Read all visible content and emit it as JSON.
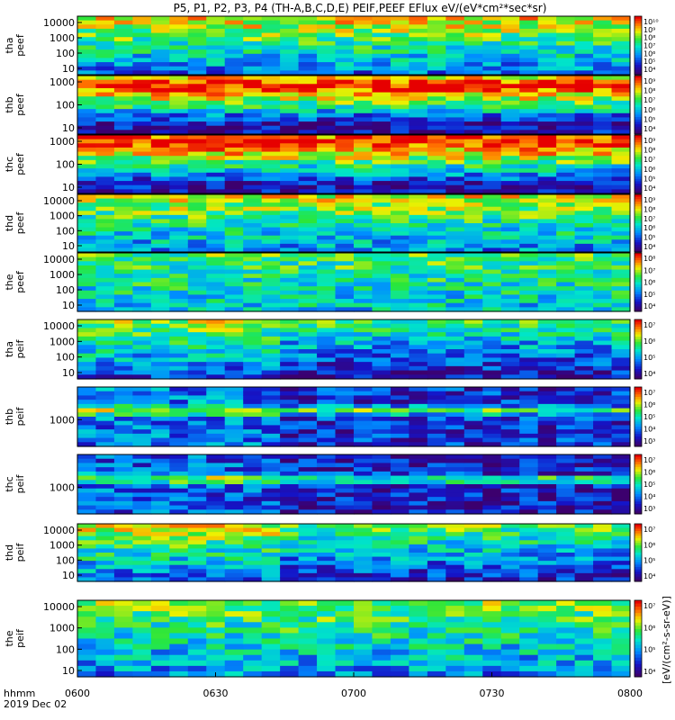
{
  "chart_data": {
    "type": "heatmap",
    "title": "P5, P1, P2, P3, P4 (TH-A,B,C,D,E) PEIF,PEEF EFlux eV/(eV*cm²*sec*sr)",
    "x_axis": {
      "label": "hhmm",
      "date_label": "2019 Dec 02",
      "ticks": [
        "0600",
        "0630",
        "0700",
        "0730",
        "0800"
      ],
      "range": [
        "0600",
        "0800"
      ]
    },
    "colorbar_label": "[eV/(cm²-s-sr-eV)]",
    "panels": [
      {
        "id": "tha-peef",
        "name_lines": [
          "tha",
          "peef"
        ],
        "yticks": [
          "10000",
          "1000",
          "100",
          "10"
        ],
        "cbar_ticks": [
          "10¹⁰",
          "10⁹",
          "10⁸",
          "10⁷",
          "10⁶",
          "10⁵",
          "10⁴"
        ]
      },
      {
        "id": "thb-peef",
        "name_lines": [
          "thb",
          "peef"
        ],
        "yticks": [
          "1000",
          "100",
          "10"
        ],
        "cbar_ticks": [
          "10⁹",
          "10⁸",
          "10⁷",
          "10⁶",
          "10⁵",
          "10⁴"
        ]
      },
      {
        "id": "thc-peef",
        "name_lines": [
          "thc",
          "peef"
        ],
        "yticks": [
          "1000",
          "100",
          "10"
        ],
        "cbar_ticks": [
          "10⁹",
          "10⁸",
          "10⁷",
          "10⁶",
          "10⁵",
          "10⁴"
        ]
      },
      {
        "id": "thd-peef",
        "name_lines": [
          "thd",
          "peef"
        ],
        "yticks": [
          "10000",
          "1000",
          "100",
          "10"
        ],
        "cbar_ticks": [
          "10⁹",
          "10⁸",
          "10⁷",
          "10⁶",
          "10⁵",
          "10⁴"
        ]
      },
      {
        "id": "the-peef",
        "name_lines": [
          "the",
          "peef"
        ],
        "yticks": [
          "10000",
          "1000",
          "100",
          "10"
        ],
        "cbar_ticks": [
          "10⁸",
          "10⁷",
          "10⁶",
          "10⁵",
          "10⁴"
        ]
      },
      {
        "id": "tha-peif",
        "name_lines": [
          "tha",
          "peif"
        ],
        "yticks": [
          "10000",
          "1000",
          "100",
          "10"
        ],
        "cbar_ticks": [
          "10⁷",
          "10⁶",
          "10⁵",
          "10⁴"
        ]
      },
      {
        "id": "thb-peif",
        "name_lines": [
          "thb",
          "peif"
        ],
        "yticks": [
          "1000"
        ],
        "cbar_ticks": [
          "10⁷",
          "10⁶",
          "10⁵",
          "10⁴",
          "10³"
        ]
      },
      {
        "id": "thc-peif",
        "name_lines": [
          "thc",
          "peif"
        ],
        "yticks": [
          "1000"
        ],
        "cbar_ticks": [
          "10⁷",
          "10⁶",
          "10⁵",
          "10⁴",
          "10³"
        ]
      },
      {
        "id": "thd-peif",
        "name_lines": [
          "thd",
          "peif"
        ],
        "yticks": [
          "10000",
          "1000",
          "100",
          "10"
        ],
        "cbar_ticks": [
          "10⁷",
          "10⁶",
          "10⁵",
          "10⁴"
        ]
      },
      {
        "id": "the-peif",
        "name_lines": [
          "the",
          "peif"
        ],
        "yticks": [
          "10000",
          "1000",
          "100",
          "10"
        ],
        "cbar_ticks": [
          "10⁷",
          "10⁶",
          "10⁵",
          "10⁴"
        ]
      }
    ]
  }
}
